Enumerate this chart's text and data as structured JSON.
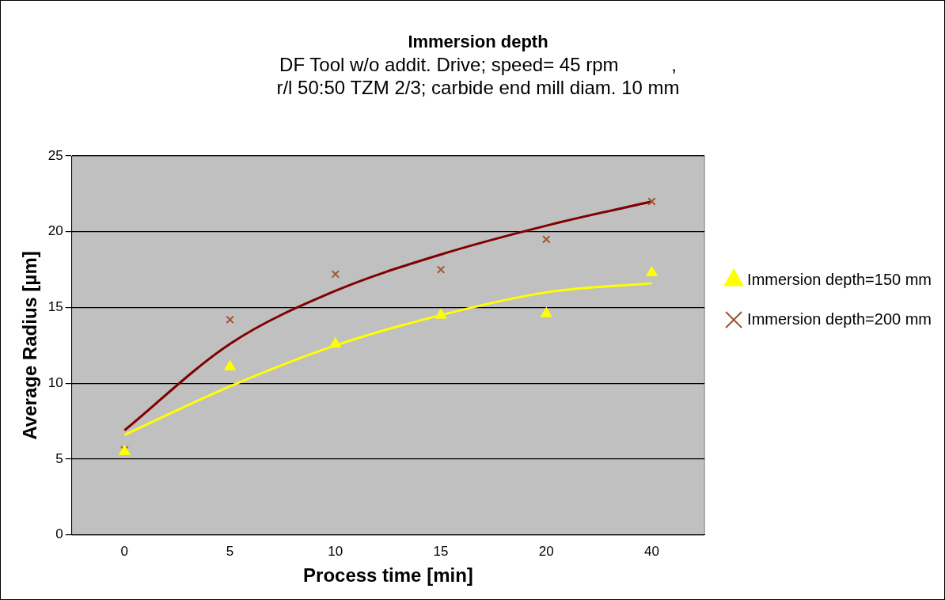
{
  "chart_data": {
    "type": "scatter",
    "title": "Immersion depth",
    "subtitle": [
      "DF Tool w/o addit. Drive; speed= 45 rpm          ,",
      "r/l 50:50 TZM 2/3; carbide end mill diam. 10 mm"
    ],
    "xlabel": "Process time [min]",
    "ylabel": "Average Radius [µm]",
    "categories": [
      "0",
      "5",
      "10",
      "15",
      "20",
      "40"
    ],
    "series": [
      {
        "name": "Immersion depth=150 mm",
        "color": "#ffff00",
        "marker": "triangle",
        "values": [
          5.5,
          11.1,
          12.6,
          14.5,
          14.6,
          17.3
        ]
      },
      {
        "name": "Immersion depth=200 mm",
        "color": "#a0522d",
        "marker": "cross",
        "values": [
          5.6,
          14.2,
          17.2,
          17.5,
          19.5,
          22.0
        ]
      },
      {
        "type": "line",
        "color": "#ffff00",
        "marker": "none",
        "values": [
          6.6,
          9.8,
          12.5,
          14.5,
          16.0,
          16.6
        ]
      },
      {
        "type": "line",
        "color": "#800000",
        "marker": "none",
        "values": [
          6.9,
          12.6,
          16.1,
          18.5,
          20.4,
          22.0
        ]
      }
    ],
    "ylim": [
      0,
      25
    ],
    "yticks": [
      0,
      5,
      10,
      15,
      20,
      25
    ],
    "grid": "y",
    "legend": "right"
  }
}
